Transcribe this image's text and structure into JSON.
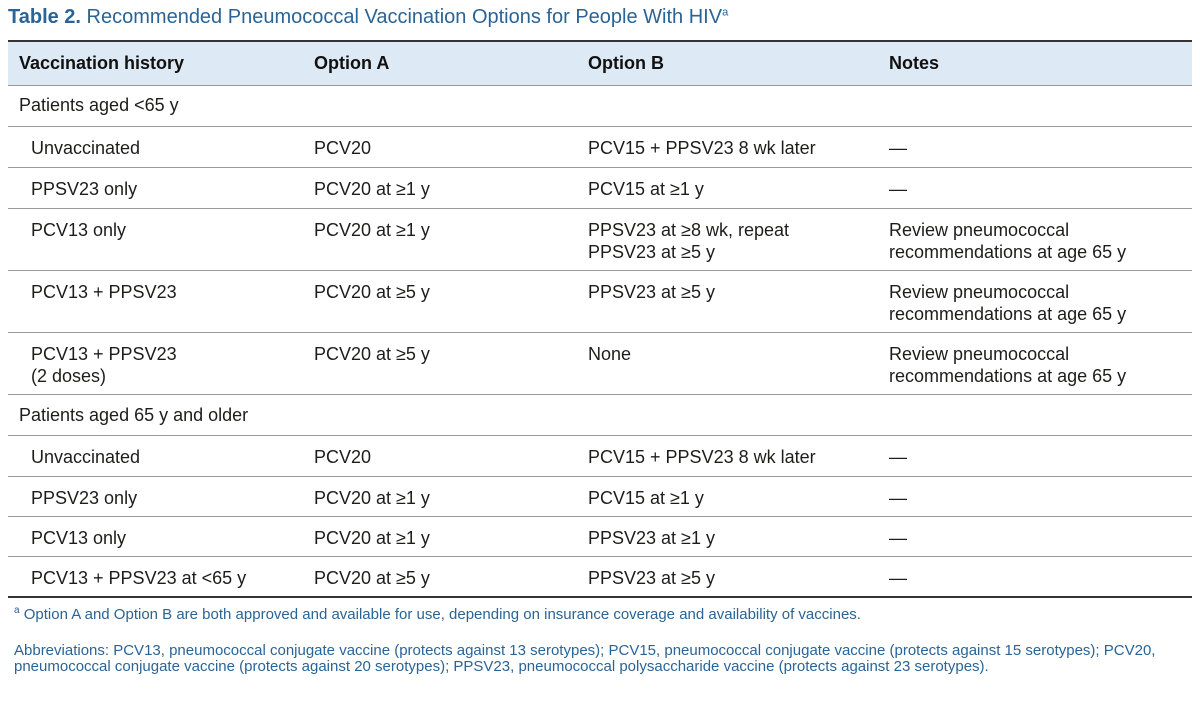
{
  "title": {
    "label": "Table 2.",
    "text": " Recommended Pneumococcal Vaccination Options for People With HIV",
    "sup": "a"
  },
  "columns": [
    "Vaccination history",
    "Option A",
    "Option B",
    "Notes"
  ],
  "groups": [
    {
      "label": "Patients aged <65 y",
      "rows": [
        {
          "history": "Unvaccinated",
          "a": "PCV20",
          "b": "PCV15 + PPSV23 8 wk later",
          "notes": "—"
        },
        {
          "history": "PPSV23 only",
          "a": "PCV20 at ≥1 y",
          "b": "PCV15 at ≥1 y",
          "notes": "—"
        },
        {
          "history": "PCV13 only",
          "a": "PCV20 at ≥1 y",
          "b": "PPSV23 at ≥8 wk, repeat\nPPSV23 at ≥5 y",
          "notes": "Review pneumococcal\nrecommendations at age 65 y"
        },
        {
          "history": "PCV13 + PPSV23",
          "a": "PCV20 at ≥5 y",
          "b": "PPSV23 at ≥5 y",
          "notes": "Review pneumococcal\nrecommendations at age 65 y"
        },
        {
          "history": "PCV13 + PPSV23\n(2 doses)",
          "a": "PCV20 at ≥5 y",
          "b": "None",
          "notes": "Review pneumococcal\nrecommendations at age 65 y"
        }
      ]
    },
    {
      "label": "Patients aged 65 y and older",
      "rows": [
        {
          "history": "Unvaccinated",
          "a": "PCV20",
          "b": "PCV15 + PPSV23 8 wk later",
          "notes": "—"
        },
        {
          "history": "PPSV23 only",
          "a": "PCV20 at ≥1 y",
          "b": "PCV15 at ≥1 y",
          "notes": "—"
        },
        {
          "history": "PCV13 only",
          "a": "PCV20 at ≥1 y",
          "b": "PPSV23 at ≥1 y",
          "notes": "—"
        },
        {
          "history": "PCV13 + PPSV23 at <65 y",
          "a": "PCV20 at ≥5 y",
          "b": "PPSV23 at ≥5 y",
          "notes": "—"
        }
      ]
    }
  ],
  "footnote": {
    "sup": "a",
    "text": " Option A and Option B are both approved and available for use, depending on insurance coverage and availability of vaccines."
  },
  "abbreviations": "Abbreviations: PCV13, pneumococcal conjugate vaccine (protects against 13 serotypes); PCV15, pneumococcal conjugate vaccine (protects against 15 serotypes); PCV20, pneumococcal conjugate vaccine (protects against 20 serotypes); PPSV23, pneumococcal polysaccharide vaccine (protects against 23 serotypes).",
  "colors": {
    "accent": "#2a6496",
    "header_bg": "#dde9f4",
    "rule": "#9a9a9a"
  }
}
